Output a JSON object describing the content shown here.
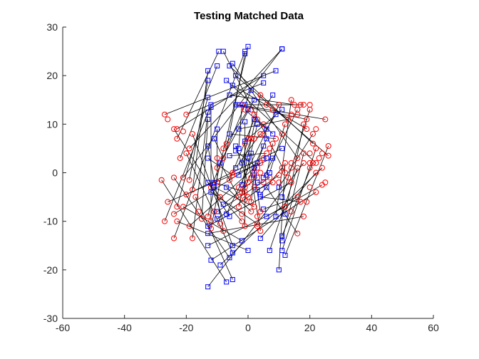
{
  "chart_data": {
    "type": "scatter",
    "title": "Testing Matched Data",
    "xlabel": "",
    "ylabel": "",
    "xlim": [
      -60,
      60
    ],
    "ylim": [
      -30,
      30
    ],
    "xticks": [
      -60,
      -40,
      -20,
      0,
      20,
      40,
      60
    ],
    "yticks": [
      -30,
      -20,
      -10,
      0,
      10,
      20,
      30
    ],
    "grid": false,
    "legend": "none",
    "series": [
      {
        "marker": "square",
        "color": "#0000ff",
        "points": [
          [
            -9.5,
            25
          ],
          [
            -10,
            22
          ],
          [
            -13,
            19
          ],
          [
            -13,
            21
          ],
          [
            -13,
            15.5
          ],
          [
            -12,
            14
          ],
          [
            -13,
            12.5
          ],
          [
            -13,
            11
          ],
          [
            -12,
            13.5
          ],
          [
            -13,
            5.5
          ],
          [
            -10,
            9
          ],
          [
            -11,
            7
          ],
          [
            -13,
            3
          ],
          [
            -9,
            2
          ],
          [
            -13,
            -2
          ],
          [
            -11,
            -2
          ],
          [
            -11,
            -3
          ],
          [
            -12,
            -4
          ],
          [
            -7,
            -3
          ],
          [
            -8,
            -6.5
          ],
          [
            -10,
            -8
          ],
          [
            -10,
            -9.5
          ],
          [
            -13,
            -11
          ],
          [
            -13,
            -12.5
          ],
          [
            -13,
            -15
          ],
          [
            -12,
            -18
          ],
          [
            -9,
            -19
          ],
          [
            -13,
            -23.5
          ],
          [
            -8,
            25
          ],
          [
            -5,
            22.5
          ],
          [
            -6,
            22
          ],
          [
            -4,
            20
          ],
          [
            -7,
            19
          ],
          [
            -5,
            18
          ],
          [
            -6,
            16
          ],
          [
            -4,
            14
          ],
          [
            -3,
            14
          ],
          [
            -1,
            14
          ],
          [
            -3,
            9
          ],
          [
            -6,
            8
          ],
          [
            -6,
            3.5
          ],
          [
            -4,
            4.5
          ],
          [
            -4,
            5.5
          ],
          [
            -3,
            5
          ],
          [
            -2,
            2
          ],
          [
            -4,
            1
          ],
          [
            -3,
            -0.5
          ],
          [
            -2,
            -2.5
          ],
          [
            -7,
            -8.5
          ],
          [
            -6,
            -9
          ],
          [
            -5,
            -15
          ],
          [
            -5,
            -16.5
          ],
          [
            -6,
            -17.5
          ],
          [
            -7,
            -22.5
          ],
          [
            -5,
            -22
          ],
          [
            -2,
            -14
          ],
          [
            0,
            -16
          ],
          [
            -1,
            25
          ],
          [
            0,
            26
          ],
          [
            -1,
            24.5
          ],
          [
            1,
            17
          ],
          [
            2,
            15
          ],
          [
            0,
            13
          ],
          [
            2,
            11
          ],
          [
            3,
            10
          ],
          [
            -1,
            10.5
          ],
          [
            -1,
            6.5
          ],
          [
            1,
            4
          ],
          [
            0,
            3
          ],
          [
            2,
            -0.5
          ],
          [
            3,
            -2
          ],
          [
            3,
            -3.5
          ],
          [
            4,
            -4.5
          ],
          [
            4,
            -5
          ],
          [
            6,
            -3
          ],
          [
            5,
            -7.5
          ],
          [
            6,
            -9
          ],
          [
            4,
            -13.5
          ],
          [
            7,
            -16
          ],
          [
            10,
            -20
          ],
          [
            11,
            -14
          ],
          [
            11,
            -16
          ],
          [
            12,
            -17
          ],
          [
            11,
            -13
          ],
          [
            12,
            -8.5
          ],
          [
            9,
            -9
          ],
          [
            10,
            -3
          ],
          [
            11,
            -5
          ],
          [
            5,
            -1
          ],
          [
            7,
            0
          ],
          [
            6,
            -0.5
          ],
          [
            6,
            3
          ],
          [
            5,
            5.5
          ],
          [
            6,
            7
          ],
          [
            6,
            9
          ],
          [
            8,
            8
          ],
          [
            9,
            12
          ],
          [
            11,
            13
          ],
          [
            8,
            16
          ],
          [
            9,
            21
          ],
          [
            5,
            20
          ],
          [
            5,
            18.5
          ],
          [
            11,
            25.5
          ],
          [
            11,
            25.5
          ],
          [
            11,
            5
          ],
          [
            8,
            3
          ],
          [
            3,
            2
          ],
          [
            2,
            1
          ]
        ]
      },
      {
        "marker": "circle",
        "color": "#ff0000",
        "points": [
          [
            -27,
            12
          ],
          [
            -26,
            11
          ],
          [
            -24,
            9
          ],
          [
            -23,
            9
          ],
          [
            -21,
            8.5
          ],
          [
            -18,
            8
          ],
          [
            -20,
            12
          ],
          [
            -23,
            7
          ],
          [
            -20,
            4
          ],
          [
            -19,
            5
          ],
          [
            -22,
            3
          ],
          [
            -24,
            -1
          ],
          [
            -21,
            -1
          ],
          [
            -19,
            -1.5
          ],
          [
            -28,
            -1.5
          ],
          [
            -20,
            -4.5
          ],
          [
            -18,
            -3.5
          ],
          [
            -17,
            -5
          ],
          [
            -26,
            -6
          ],
          [
            -23,
            -7
          ],
          [
            -21,
            -7
          ],
          [
            -24,
            -8.5
          ],
          [
            -27,
            -10
          ],
          [
            -23,
            -10
          ],
          [
            -19,
            -11
          ],
          [
            -18,
            -13.5
          ],
          [
            -24,
            -13.5
          ],
          [
            -16,
            -8
          ],
          [
            -15,
            -9.5
          ],
          [
            -13,
            -9
          ],
          [
            -11,
            -8
          ],
          [
            -12,
            -10
          ],
          [
            -12,
            -11.5
          ],
          [
            -9,
            -10.5
          ],
          [
            -8,
            -12
          ],
          [
            -12,
            -3
          ],
          [
            -9,
            -5
          ],
          [
            -10,
            -2
          ],
          [
            -10,
            1
          ],
          [
            -10,
            3
          ],
          [
            -8,
            3
          ],
          [
            -8,
            5
          ],
          [
            -7,
            6
          ],
          [
            -5,
            -0.5
          ],
          [
            -6,
            -1.5
          ],
          [
            -5,
            0
          ],
          [
            -3,
            -5
          ],
          [
            -3,
            -7
          ],
          [
            -2,
            -8.5
          ],
          [
            -2,
            -10
          ],
          [
            -1,
            -11
          ],
          [
            -3,
            -3
          ],
          [
            -1,
            -4
          ],
          [
            -1,
            -5.5
          ],
          [
            0,
            -5
          ],
          [
            2,
            -7
          ],
          [
            4,
            -8
          ],
          [
            3,
            -9
          ],
          [
            3,
            -10.5
          ],
          [
            4,
            -12
          ],
          [
            3,
            -11
          ],
          [
            1,
            -8
          ],
          [
            1,
            -6
          ],
          [
            2,
            -3
          ],
          [
            3,
            -1
          ],
          [
            5,
            -2
          ],
          [
            4,
            0
          ],
          [
            7,
            -1
          ],
          [
            8,
            -2
          ],
          [
            10,
            -2
          ],
          [
            10,
            -0.5
          ],
          [
            11,
            1
          ],
          [
            13,
            -1
          ],
          [
            14,
            -2
          ],
          [
            17,
            -6
          ],
          [
            19,
            -6
          ],
          [
            18,
            -9
          ],
          [
            16,
            -12.5
          ],
          [
            14,
            -8
          ],
          [
            12,
            -7
          ],
          [
            16,
            -5
          ],
          [
            20,
            -3
          ],
          [
            22,
            -4
          ],
          [
            24,
            -2.5
          ],
          [
            25,
            -2
          ],
          [
            24,
            1
          ],
          [
            22,
            0
          ],
          [
            20,
            1
          ],
          [
            18,
            2
          ],
          [
            16,
            1
          ],
          [
            14,
            1
          ],
          [
            12,
            0
          ],
          [
            12,
            2
          ],
          [
            14,
            2
          ],
          [
            16,
            3
          ],
          [
            18,
            4
          ],
          [
            20,
            4
          ],
          [
            21,
            6
          ],
          [
            22,
            5
          ],
          [
            23,
            3
          ],
          [
            26,
            3.5
          ],
          [
            26,
            5.5
          ],
          [
            24,
            4
          ],
          [
            22,
            2
          ],
          [
            21,
            2
          ],
          [
            20,
            2
          ],
          [
            19,
            9
          ],
          [
            18,
            10
          ],
          [
            16,
            12
          ],
          [
            15,
            14
          ],
          [
            14,
            15
          ],
          [
            17,
            14
          ],
          [
            19,
            11
          ],
          [
            21,
            8
          ],
          [
            22,
            9
          ],
          [
            25,
            11
          ],
          [
            20,
            13
          ],
          [
            20,
            14
          ],
          [
            18,
            14
          ],
          [
            16,
            13
          ],
          [
            14,
            12
          ],
          [
            13,
            11
          ],
          [
            12,
            10
          ],
          [
            11,
            8
          ],
          [
            9,
            7
          ],
          [
            8,
            6
          ],
          [
            7,
            5
          ],
          [
            6,
            4
          ],
          [
            5,
            3
          ],
          [
            4,
            2
          ],
          [
            3,
            1
          ],
          [
            2,
            0
          ],
          [
            1,
            -1
          ],
          [
            0,
            -2
          ],
          [
            -1,
            -3
          ],
          [
            -2,
            -4
          ],
          [
            -2,
            14
          ],
          [
            -1,
            13
          ],
          [
            1,
            13
          ],
          [
            2,
            12
          ],
          [
            3,
            11
          ],
          [
            5,
            10
          ],
          [
            4,
            8
          ],
          [
            5,
            8
          ],
          [
            2,
            7
          ],
          [
            1,
            7
          ],
          [
            0,
            7
          ],
          [
            -1,
            6
          ],
          [
            4,
            16
          ],
          [
            6,
            14
          ],
          [
            8,
            13
          ],
          [
            10,
            14
          ]
        ]
      }
    ],
    "connections_note": "each blue square is joined to its matched red circle by a thin black line"
  }
}
